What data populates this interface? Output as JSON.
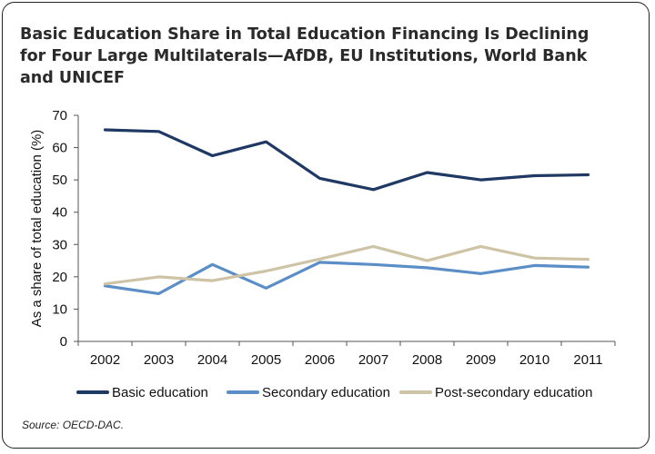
{
  "chart_data": {
    "type": "line",
    "title": "Basic Education Share in Total Education Financing Is Declining for Four Large Multilaterals—AfDB, EU Institutions, World Bank and UNICEF",
    "ylabel": "As a share of total education (%)",
    "xlabel": "",
    "ylim": [
      0,
      70
    ],
    "yticks": [
      0,
      10,
      20,
      30,
      40,
      50,
      60,
      70
    ],
    "grid": false,
    "legend_position": "bottom",
    "x": [
      "2002",
      "2003",
      "2004",
      "2005",
      "2006",
      "2007",
      "2008",
      "2009",
      "2010",
      "2011"
    ],
    "series": [
      {
        "name": "Basic education",
        "color": "#1f3864",
        "values": [
          65.5,
          65.0,
          57.5,
          61.8,
          50.5,
          47.0,
          52.3,
          50.0,
          51.3,
          51.6
        ]
      },
      {
        "name": "Secondary education",
        "color": "#5b8ec7",
        "values": [
          17.2,
          14.8,
          23.8,
          16.5,
          24.5,
          23.8,
          22.8,
          21.0,
          23.5,
          23.0
        ]
      },
      {
        "name": "Post-secondary education",
        "color": "#cec3a5",
        "values": [
          17.8,
          20.0,
          18.8,
          21.8,
          25.5,
          29.4,
          25.0,
          29.4,
          25.8,
          25.4
        ]
      }
    ],
    "source": "Source: OECD-DAC."
  }
}
